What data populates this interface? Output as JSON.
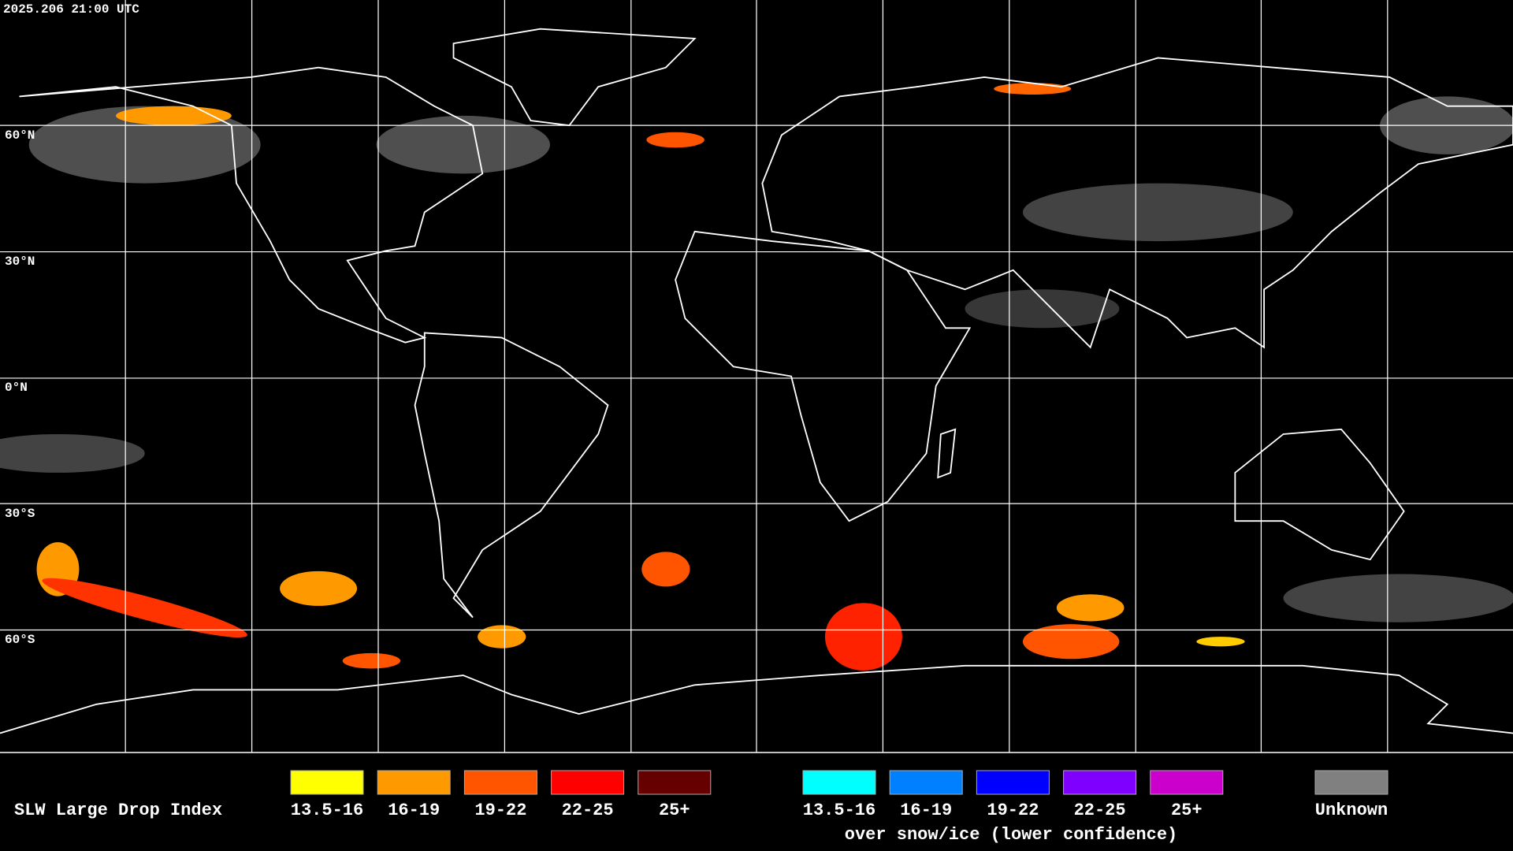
{
  "header": {
    "timestamp": "2025.206 21:00 UTC"
  },
  "map": {
    "lat_labels": [
      "60°N",
      "30°N",
      "0°N",
      "30°S",
      "60°S"
    ]
  },
  "legend": {
    "title": "SLW Large Drop Index",
    "groups": [
      {
        "items": [
          {
            "label": "13.5-16",
            "color": "#ffff00"
          },
          {
            "label": "16-19",
            "color": "#ff9900"
          },
          {
            "label": "19-22",
            "color": "#ff5500"
          },
          {
            "label": "22-25",
            "color": "#ff0000"
          },
          {
            "label": "25+",
            "color": "#660000"
          }
        ]
      },
      {
        "items": [
          {
            "label": "13.5-16",
            "color": "#00ffff"
          },
          {
            "label": "16-19",
            "color": "#0080ff"
          },
          {
            "label": "19-22",
            "color": "#0000ff"
          },
          {
            "label": "22-25",
            "color": "#7f00ff"
          },
          {
            "label": "25+",
            "color": "#cc00cc"
          }
        ],
        "caption": "over snow/ice (lower confidence)"
      }
    ],
    "unknown": {
      "label": "Unknown",
      "color": "#808080"
    }
  }
}
